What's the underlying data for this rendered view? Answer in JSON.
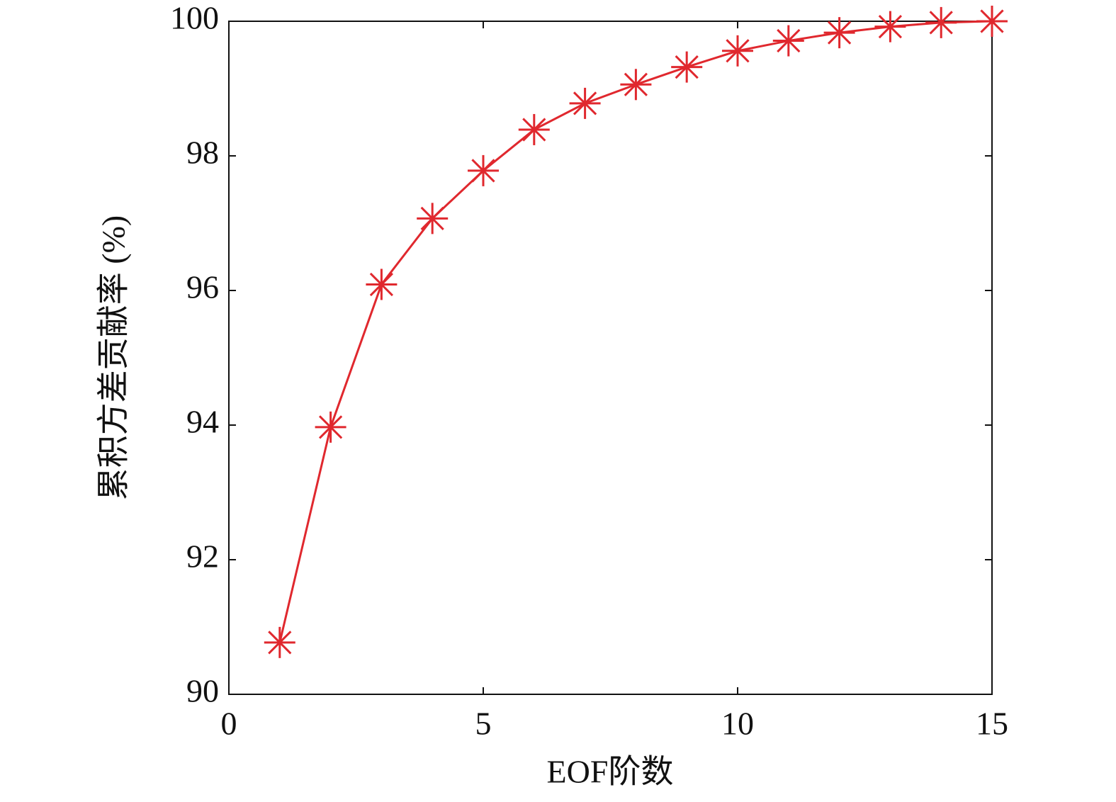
{
  "chart_data": {
    "type": "line",
    "x_label": "EOF阶数",
    "y_label": "累积方差贡献率 (%)",
    "x": [
      1,
      2,
      3,
      4,
      5,
      6,
      7,
      8,
      9,
      10,
      11,
      12,
      13,
      14,
      15
    ],
    "series": [
      {
        "name": "累积方差贡献率",
        "color": "#e0282e",
        "values": [
          90.77,
          93.97,
          96.09,
          97.07,
          97.78,
          98.39,
          98.78,
          99.06,
          99.32,
          99.56,
          99.71,
          99.83,
          99.92,
          99.98,
          100
        ]
      }
    ],
    "xlim": [
      0,
      15
    ],
    "xticks": [
      0,
      5,
      10,
      15
    ],
    "ylim": [
      90,
      100
    ],
    "yticks": [
      90,
      92,
      94,
      96,
      98,
      100
    ],
    "grid": false,
    "legend": false
  }
}
